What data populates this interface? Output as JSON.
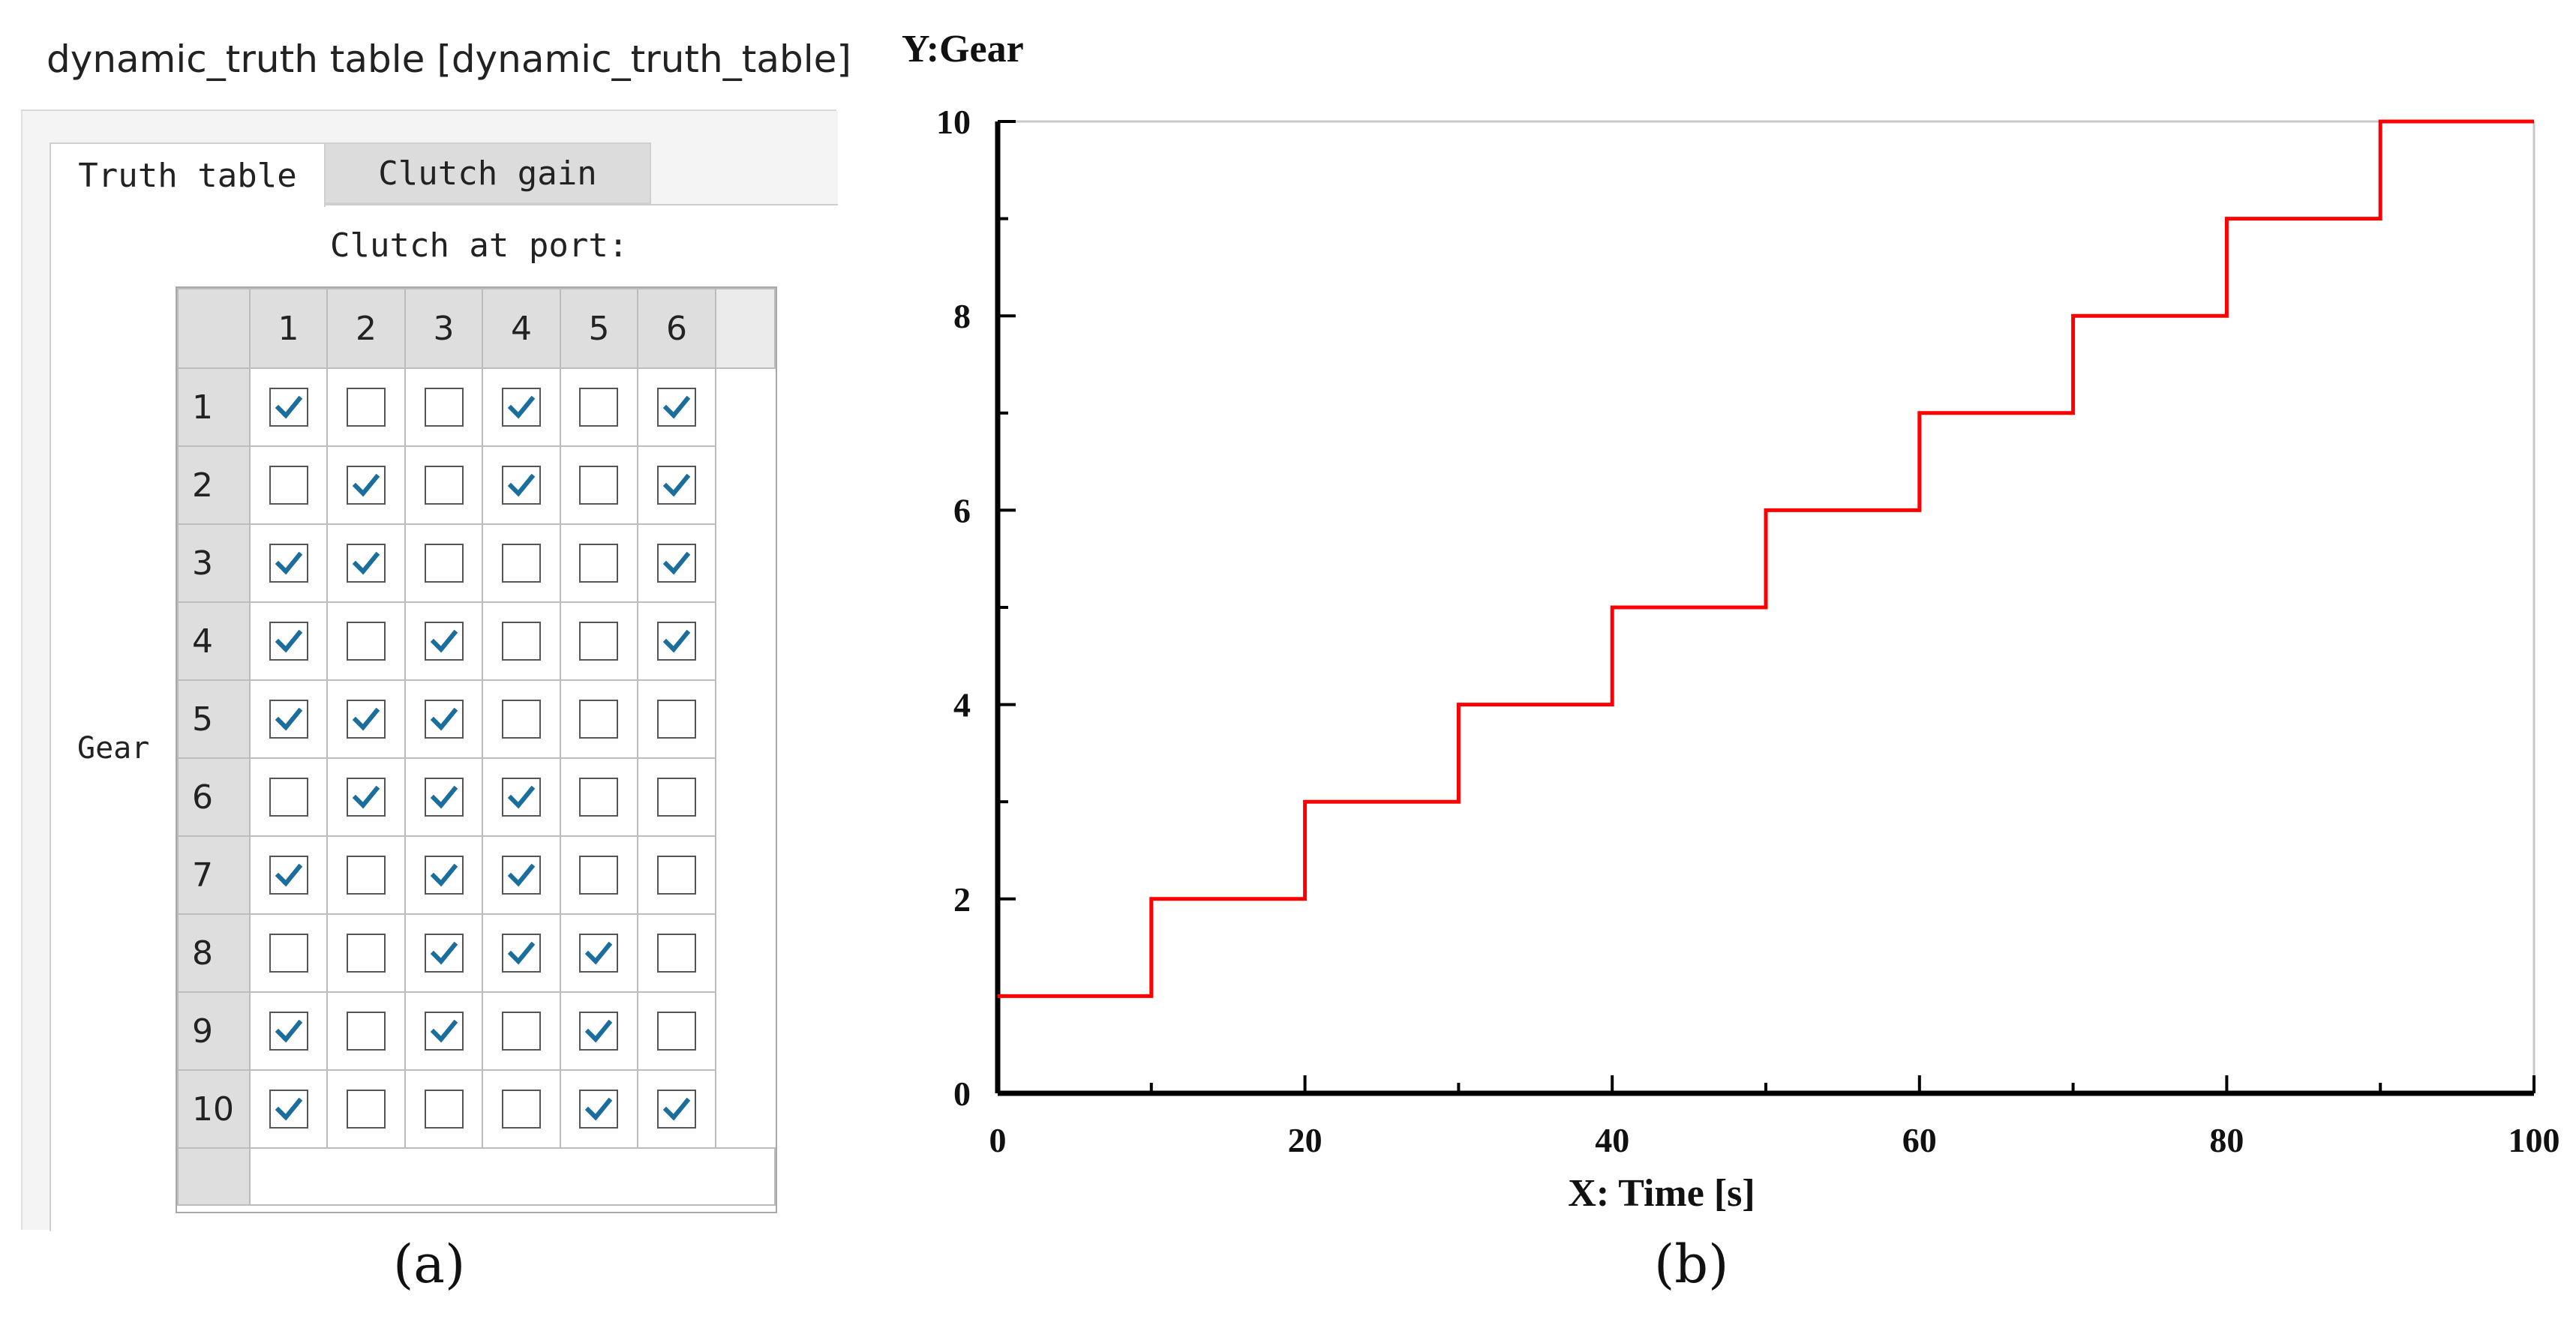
{
  "window": {
    "title": "dynamic_truth table [dynamic_truth_table]"
  },
  "tabs": [
    {
      "label": "Truth table",
      "active": true
    },
    {
      "label": "Clutch gain",
      "active": false
    }
  ],
  "truth_table": {
    "column_heading": "Clutch at port:",
    "row_heading": "Gear",
    "ports": [
      "1",
      "2",
      "3",
      "4",
      "5",
      "6"
    ],
    "gears": [
      {
        "gear": "1",
        "clutches": [
          true,
          false,
          false,
          true,
          false,
          true
        ]
      },
      {
        "gear": "2",
        "clutches": [
          false,
          true,
          false,
          true,
          false,
          true
        ]
      },
      {
        "gear": "3",
        "clutches": [
          true,
          true,
          false,
          false,
          false,
          true
        ]
      },
      {
        "gear": "4",
        "clutches": [
          true,
          false,
          true,
          false,
          false,
          true
        ]
      },
      {
        "gear": "5",
        "clutches": [
          true,
          true,
          true,
          false,
          false,
          false
        ]
      },
      {
        "gear": "6",
        "clutches": [
          false,
          true,
          true,
          true,
          false,
          false
        ]
      },
      {
        "gear": "7",
        "clutches": [
          true,
          false,
          true,
          true,
          false,
          false
        ]
      },
      {
        "gear": "8",
        "clutches": [
          false,
          false,
          true,
          true,
          true,
          false
        ]
      },
      {
        "gear": "9",
        "clutches": [
          true,
          false,
          true,
          false,
          true,
          false
        ]
      },
      {
        "gear": "10",
        "clutches": [
          true,
          false,
          false,
          false,
          true,
          true
        ]
      }
    ],
    "check_color": "#1a6e9e"
  },
  "figure_labels": {
    "a": "(a)",
    "b": "(b)"
  },
  "chart_data": {
    "type": "line",
    "step": true,
    "title": "",
    "ylabel": "Y:Gear",
    "xlabel": "X: Time [s]",
    "xlim": [
      0,
      100
    ],
    "ylim": [
      0,
      10
    ],
    "xticks": [
      0,
      20,
      40,
      60,
      80,
      100
    ],
    "yticks": [
      0,
      2,
      4,
      6,
      8,
      10
    ],
    "grid": false,
    "series": [
      {
        "name": "Gear",
        "color": "#ff0000",
        "x": [
          0,
          10,
          20,
          30,
          40,
          50,
          60,
          70,
          80,
          90,
          100
        ],
        "y": [
          1,
          2,
          3,
          4,
          5,
          6,
          7,
          8,
          9,
          10,
          10
        ]
      }
    ]
  }
}
